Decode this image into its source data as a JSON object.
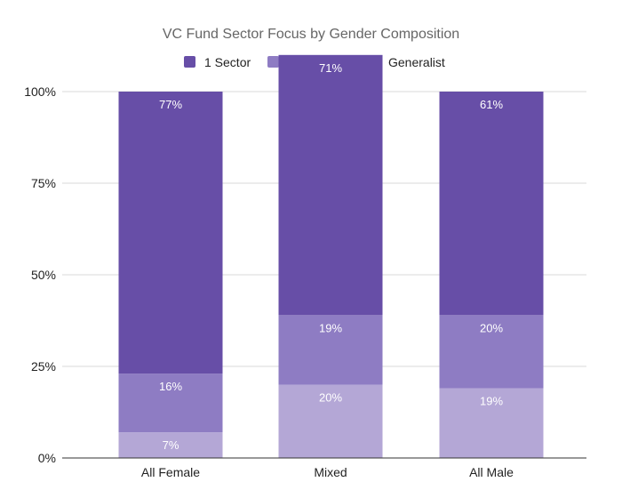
{
  "chart_data": {
    "type": "bar",
    "stacked": true,
    "title": "VC Fund Sector Focus by Gender Composition",
    "xlabel": "",
    "ylabel": "",
    "categories": [
      "All Female",
      "Mixed",
      "All Male"
    ],
    "series": [
      {
        "name": "Generalist",
        "values": [
          7,
          20,
          19
        ],
        "labels": [
          "7%",
          "20%",
          "19%"
        ],
        "color": "#b4a7d6"
      },
      {
        "name": "> 1 Sector",
        "values": [
          16,
          19,
          20
        ],
        "labels": [
          "16%",
          "19%",
          "20%"
        ],
        "color": "#8e7cc3"
      },
      {
        "name": "1 Sector",
        "values": [
          77,
          71,
          61
        ],
        "labels": [
          "77%",
          "71%",
          "61%"
        ],
        "color": "#674ea7"
      }
    ],
    "ylim": [
      0,
      100
    ],
    "yticks": [
      0,
      25,
      50,
      75,
      100
    ],
    "ytick_labels": [
      "0%",
      "25%",
      "50%",
      "75%",
      "100%"
    ],
    "legend_order": [
      "1 Sector",
      "> 1 Sector",
      "Generalist"
    ],
    "legend_position": "top",
    "grid": true
  }
}
